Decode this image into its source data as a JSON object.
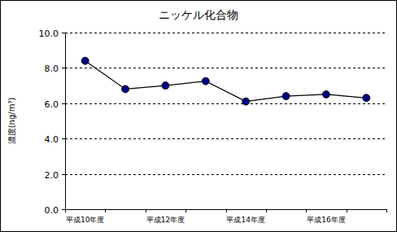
{
  "chart_data": {
    "type": "line",
    "title": "ニッケル化合物",
    "y_label": "濃度(ng/m³)",
    "categories": [
      "平成10年度",
      null,
      "平成12年度",
      null,
      "平成14年度",
      null,
      "平成16年度",
      null
    ],
    "values": [
      8.4,
      6.8,
      7.0,
      7.25,
      6.1,
      6.4,
      6.5,
      6.3
    ],
    "color": "#000080",
    "marker": "circle",
    "grid": true,
    "ylim": [
      0,
      10
    ],
    "yticks": [
      {
        "value": 0,
        "label": "0.0"
      },
      {
        "value": 2,
        "label": "2.0"
      },
      {
        "value": 4,
        "label": "4.0"
      },
      {
        "value": 6,
        "label": "6.0"
      },
      {
        "value": 8,
        "label": "8.0"
      },
      {
        "value": 10,
        "label": "10.0"
      }
    ]
  }
}
